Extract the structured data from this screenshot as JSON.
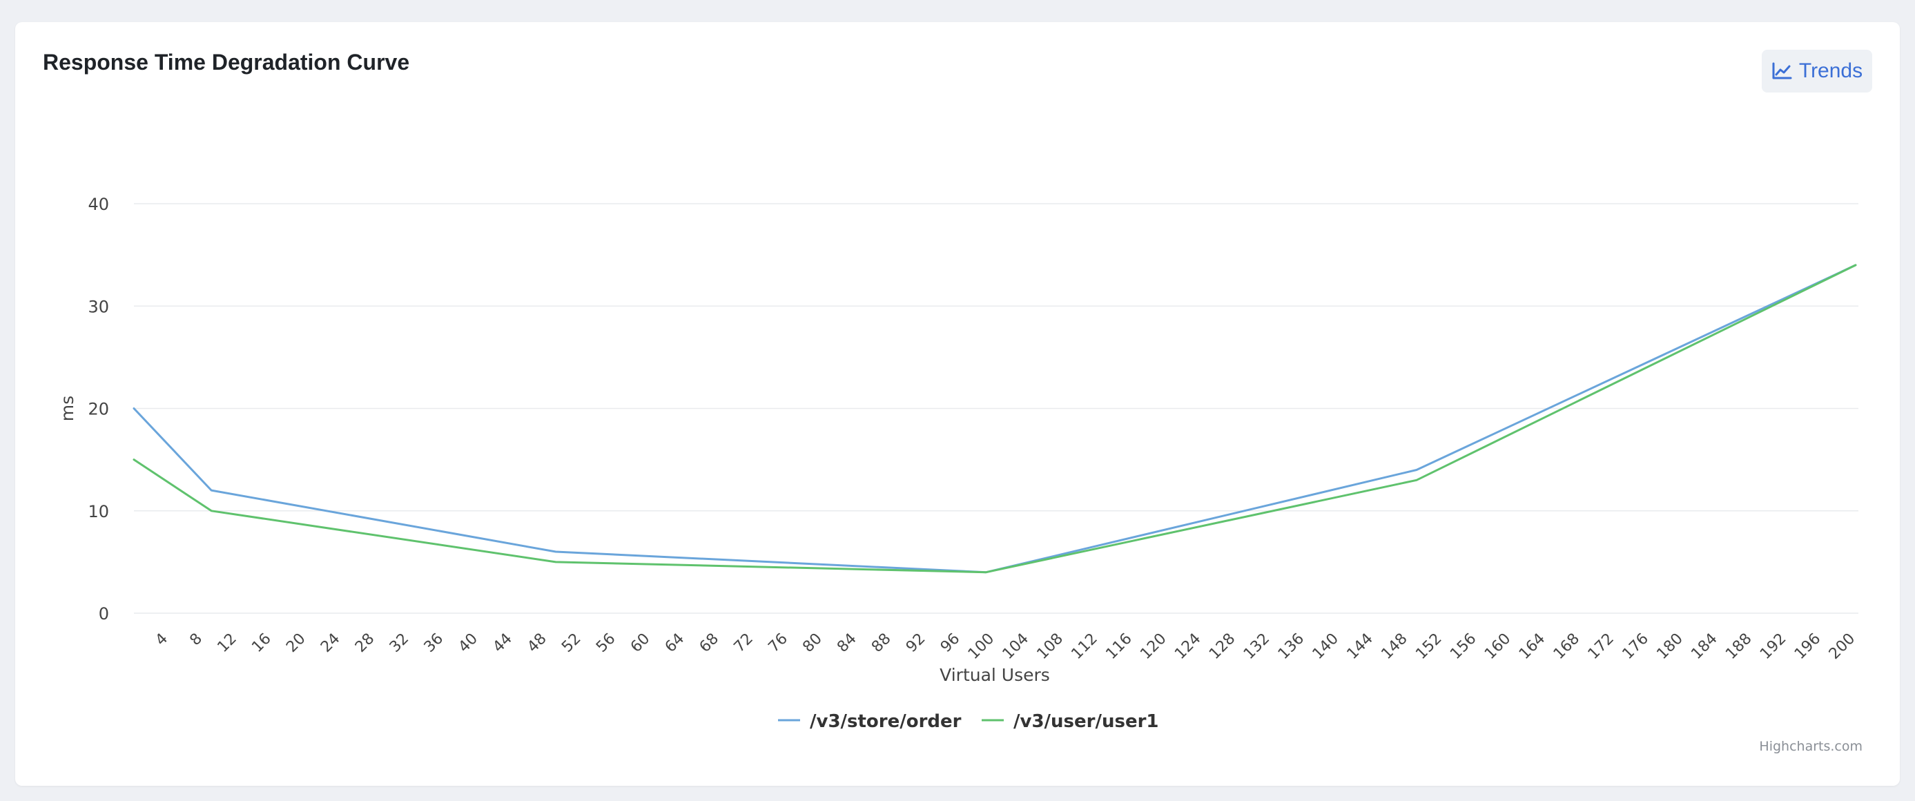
{
  "card": {
    "title": "Response Time Degradation Curve",
    "trends_label": "Trends",
    "credit": "Highcharts.com"
  },
  "chart_data": {
    "type": "line",
    "title": "Response Time Degradation Curve",
    "xlabel": "Virtual Users",
    "ylabel": "ms",
    "xlim": [
      0,
      200
    ],
    "ylim": [
      0,
      40
    ],
    "xticks": [
      4,
      8,
      12,
      16,
      20,
      24,
      28,
      32,
      36,
      40,
      44,
      48,
      52,
      56,
      60,
      64,
      68,
      72,
      76,
      80,
      84,
      88,
      92,
      96,
      100,
      104,
      108,
      112,
      116,
      120,
      124,
      128,
      132,
      136,
      140,
      144,
      148,
      152,
      156,
      160,
      164,
      168,
      172,
      176,
      180,
      184,
      188,
      192,
      196,
      200
    ],
    "yticks": [
      0,
      10,
      20,
      30,
      40
    ],
    "grid": true,
    "legend_position": "bottom-center",
    "series": [
      {
        "name": "/v3/store/order",
        "color": "#6aa5db",
        "x": [
          0,
          9,
          49,
          99,
          149,
          200
        ],
        "y": [
          20,
          12,
          6,
          4,
          14,
          34
        ]
      },
      {
        "name": "/v3/user/user1",
        "color": "#5fc26d",
        "x": [
          0,
          9,
          49,
          99,
          149,
          200
        ],
        "y": [
          15,
          10,
          5,
          4,
          13,
          34
        ]
      }
    ]
  }
}
